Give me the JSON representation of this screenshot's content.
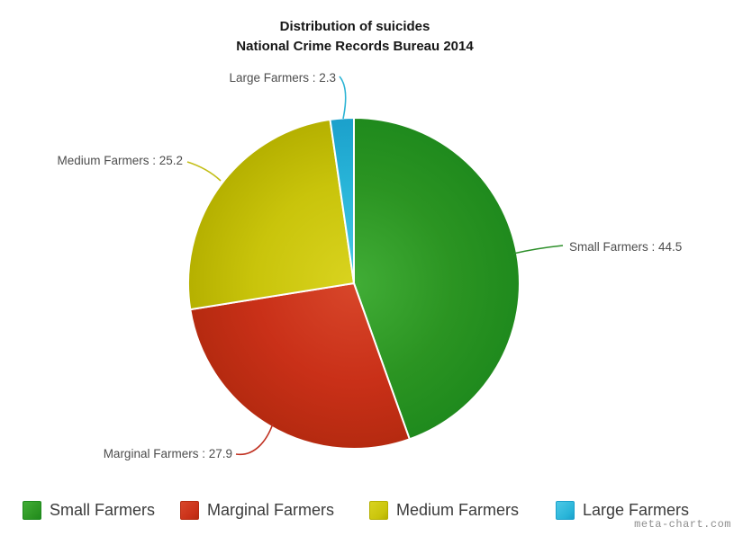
{
  "chart_data": {
    "type": "pie",
    "title": "Distribution of suicides",
    "subtitle": "National Crime Records Bureau 2014",
    "direction": "clockwise",
    "start_angle_deg": 0,
    "legend_position": "bottom",
    "slices": [
      {
        "label": "Small Farmers",
        "value": 44.5,
        "callout": "Small Farmers : 44.5",
        "color": "#2b9422",
        "color_light": "#41ad36",
        "color_edge": "#1f8a1d",
        "color_line": "#2d8f2a"
      },
      {
        "label": "Marginal Farmers",
        "value": 27.9,
        "callout": "Marginal Farmers : 27.9",
        "color": "#c93018",
        "color_light": "#d8462a",
        "color_edge": "#b52a10",
        "color_line": "#c03020"
      },
      {
        "label": "Medium Farmers",
        "value": 25.2,
        "callout": "Medium Farmers : 25.2",
        "color": "#c9c40b",
        "color_light": "#d9d31f",
        "color_edge": "#b5b000",
        "color_line": "#c3be17"
      },
      {
        "label": "Large Farmers",
        "value": 2.3,
        "callout": "Large Farmers : 2.3",
        "color": "#28b4d8",
        "color_light": "#4cc8e6",
        "color_edge": "#1ba0cb",
        "color_line": "#2ab3d4"
      }
    ]
  },
  "watermark": "meta-chart.com"
}
